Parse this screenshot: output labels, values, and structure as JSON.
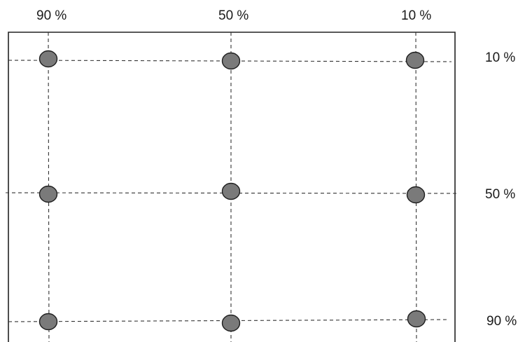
{
  "colors": {
    "point_fill": "#7a7a7a",
    "point_stroke": "#1e1e1e",
    "gridline": "#333333",
    "frame": "#222222"
  },
  "columns": [
    {
      "label": "90 %"
    },
    {
      "label": "50 %"
    },
    {
      "label": "10 %"
    }
  ],
  "rows": [
    {
      "label": "10 %"
    },
    {
      "label": "50 %"
    },
    {
      "label": "90 %"
    }
  ]
}
